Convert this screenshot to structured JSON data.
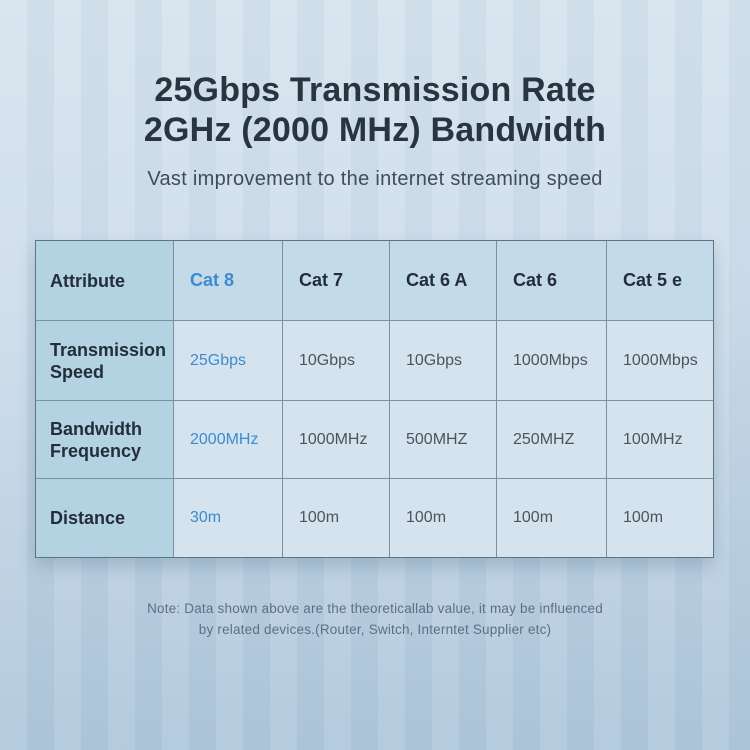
{
  "title": {
    "line1": "25Gbps Transmission Rate",
    "line2": "2GHz (2000 MHz) Bandwidth"
  },
  "subtitle": "Vast improvement to the internet streaming speed",
  "table": {
    "columns": [
      "Attribute",
      "Cat 8",
      "Cat 7",
      "Cat 6 A",
      "Cat 6",
      "Cat 5 e"
    ],
    "highlighted_column": "Cat 8",
    "rows": [
      {
        "label": "Transmission Speed",
        "values": [
          "25Gbps",
          "10Gbps",
          "10Gbps",
          "1000Mbps",
          "1000Mbps"
        ]
      },
      {
        "label": "Bandwidth Frequency",
        "values": [
          "2000MHz",
          "1000MHz",
          "500MHZ",
          "250MHZ",
          "100MHz"
        ]
      },
      {
        "label": "Distance",
        "values": [
          "30m",
          "100m",
          "100m",
          "100m",
          "100m"
        ]
      }
    ]
  },
  "note": {
    "line1": "Note: Data shown above are the theoreticallab value, it may be influenced",
    "line2": "by related devices.(Router, Switch, Interntet Supplier etc)"
  },
  "colors": {
    "accent_blue": "#3d8bcd",
    "title_navy": "#2a3441",
    "attribute_column_bg": "#b3d3e3",
    "header_row_bg": "#c3dbe9",
    "body_cell_bg": "#d4e3ee",
    "background_top": "#d6e3ee",
    "background_bottom": "#afc7db"
  },
  "chart_data": {
    "type": "table",
    "title": "25Gbps Transmission Rate 2GHz (2000 MHz) Bandwidth",
    "subtitle": "Vast improvement to the internet streaming speed",
    "columns": [
      "Attribute",
      "Cat 8",
      "Cat 7",
      "Cat 6 A",
      "Cat 6",
      "Cat 5 e"
    ],
    "rows": [
      [
        "Transmission Speed",
        "25Gbps",
        "10Gbps",
        "10Gbps",
        "1000Mbps",
        "1000Mbps"
      ],
      [
        "Bandwidth Frequency",
        "2000MHz",
        "1000MHz",
        "500MHZ",
        "250MHZ",
        "100MHz"
      ],
      [
        "Distance",
        "30m",
        "100m",
        "100m",
        "100m",
        "100m"
      ]
    ],
    "note": "Note: Data shown above are the theoreticallab value, it may be influenced by related devices.(Router, Switch, Interntet Supplier etc)"
  }
}
